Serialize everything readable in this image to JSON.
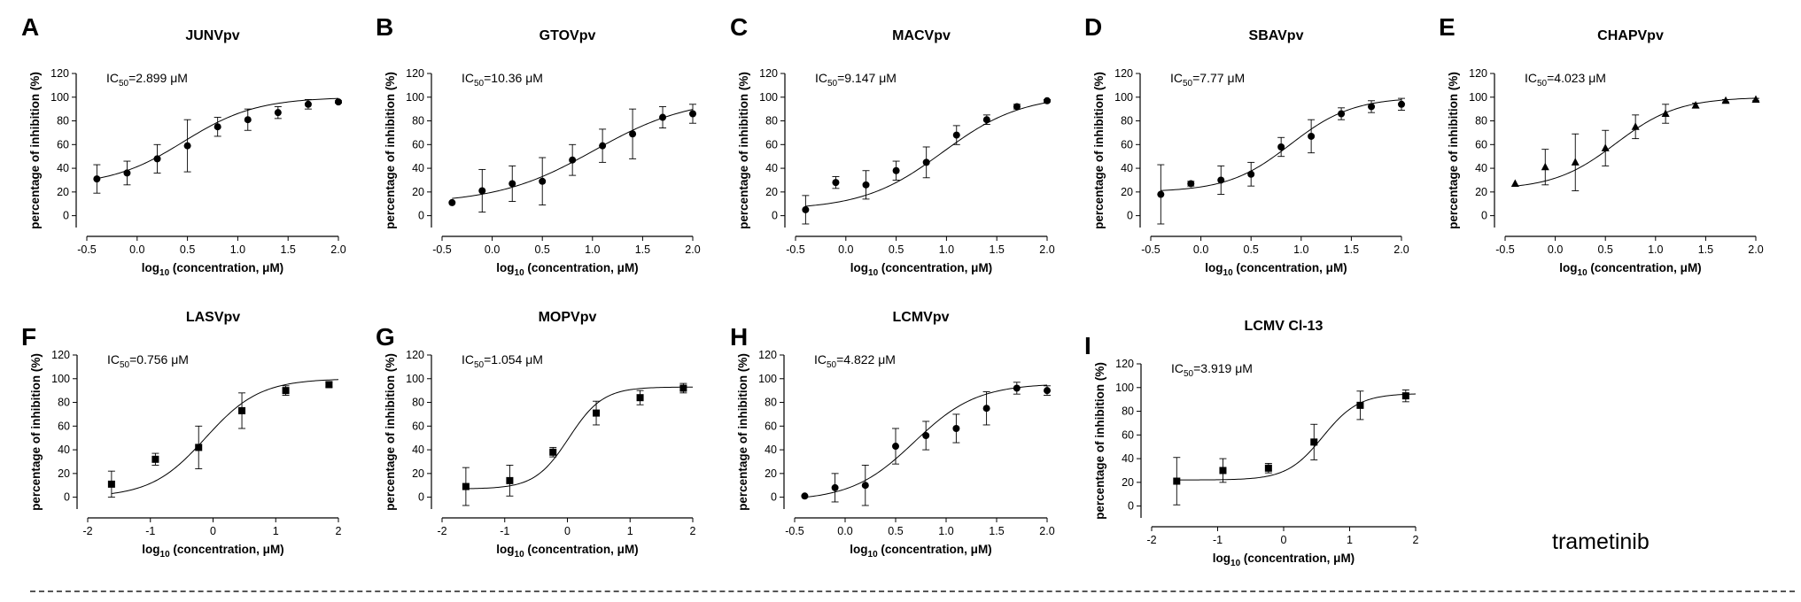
{
  "figure": {
    "drug_label": "trametinib",
    "y_label": "percentage of inhibition (%)",
    "x_label_prefix": "log",
    "x_label_sub": "10",
    "x_label_suffix": " (concentration, μM)",
    "ic50_prefix": "IC",
    "ic50_sub": "50",
    "line_color": "#000000"
  },
  "chart_data": [
    {
      "type": "scatter",
      "panel": "A",
      "title": "JUNVpv",
      "ic50": "=2.899 μM",
      "marker": "circle",
      "xlim": [
        -0.5,
        2.0
      ],
      "ylim": [
        -10,
        120
      ],
      "xticks": [
        -0.5,
        0.0,
        0.5,
        1.0,
        1.5,
        2.0
      ],
      "xtick_labels": [
        "-0.5",
        "0.0",
        "0.5",
        "1.0",
        "1.5",
        "2.0"
      ],
      "yticks": [
        0,
        20,
        40,
        60,
        80,
        100,
        120
      ],
      "ytick_labels": [
        "0",
        "20",
        "40",
        "60",
        "80",
        "100",
        "120"
      ],
      "x": [
        -0.4,
        -0.1,
        0.2,
        0.5,
        0.8,
        1.1,
        1.4,
        1.7,
        2.0
      ],
      "y": [
        31,
        36,
        48,
        59,
        75,
        81,
        87,
        94,
        96
      ],
      "err": [
        12,
        10,
        12,
        22,
        8,
        9,
        5,
        4,
        1
      ],
      "fit": {
        "bottom": 25,
        "top": 100,
        "logIC50": 0.462,
        "hill": 1.2
      }
    },
    {
      "type": "scatter",
      "panel": "B",
      "title": "GTOVpv",
      "ic50": "=10.36 μM",
      "marker": "circle",
      "xlim": [
        -0.5,
        2.0
      ],
      "ylim": [
        -10,
        120
      ],
      "xticks": [
        -0.5,
        0.0,
        0.5,
        1.0,
        1.5,
        2.0
      ],
      "xtick_labels": [
        "-0.5",
        "0.0",
        "0.5",
        "1.0",
        "1.5",
        "2.0"
      ],
      "yticks": [
        0,
        20,
        40,
        60,
        80,
        100,
        120
      ],
      "ytick_labels": [
        "0",
        "20",
        "40",
        "60",
        "80",
        "100",
        "120"
      ],
      "x": [
        -0.4,
        -0.1,
        0.2,
        0.5,
        0.8,
        1.1,
        1.4,
        1.7,
        2.0
      ],
      "y": [
        11,
        21,
        27,
        29,
        47,
        59,
        69,
        83,
        86
      ],
      "err": [
        0,
        18,
        15,
        20,
        13,
        14,
        21,
        9,
        8
      ],
      "fit": {
        "bottom": 10,
        "top": 100,
        "logIC50": 1.015,
        "hill": 0.9
      }
    },
    {
      "type": "scatter",
      "panel": "C",
      "title": "MACVpv",
      "ic50": "=9.147 μM",
      "marker": "circle",
      "xlim": [
        -0.5,
        2.0
      ],
      "ylim": [
        -10,
        120
      ],
      "xticks": [
        -0.5,
        0.0,
        0.5,
        1.0,
        1.5,
        2.0
      ],
      "xtick_labels": [
        "-0.5",
        "0.0",
        "0.5",
        "1.0",
        "1.5",
        "2.0"
      ],
      "yticks": [
        0,
        20,
        40,
        60,
        80,
        100,
        120
      ],
      "ytick_labels": [
        "0",
        "20",
        "40",
        "60",
        "80",
        "100",
        "120"
      ],
      "x": [
        -0.4,
        -0.1,
        0.2,
        0.5,
        0.8,
        1.1,
        1.4,
        1.7,
        2.0
      ],
      "y": [
        5,
        28,
        26,
        38,
        45,
        68,
        81,
        92,
        97
      ],
      "err": [
        12,
        5,
        12,
        8,
        13,
        8,
        4,
        2,
        1
      ],
      "fit": {
        "bottom": 5,
        "top": 102,
        "logIC50": 0.961,
        "hill": 1.1
      }
    },
    {
      "type": "scatter",
      "panel": "D",
      "title": "SBAVpv",
      "ic50": "=7.77 μM",
      "marker": "circle",
      "xlim": [
        -0.5,
        2.0
      ],
      "ylim": [
        -10,
        120
      ],
      "xticks": [
        -0.5,
        0.0,
        0.5,
        1.0,
        1.5,
        2.0
      ],
      "xtick_labels": [
        "-0.5",
        "0.0",
        "0.5",
        "1.0",
        "1.5",
        "2.0"
      ],
      "yticks": [
        0,
        20,
        40,
        60,
        80,
        100,
        120
      ],
      "ytick_labels": [
        "0",
        "20",
        "40",
        "60",
        "80",
        "100",
        "120"
      ],
      "x": [
        -0.4,
        -0.1,
        0.2,
        0.5,
        0.8,
        1.1,
        1.4,
        1.7,
        2.0
      ],
      "y": [
        18,
        27,
        30,
        35,
        58,
        67,
        86,
        92,
        94
      ],
      "err": [
        25,
        2,
        12,
        10,
        8,
        14,
        5,
        5,
        5
      ],
      "fit": {
        "bottom": 20,
        "top": 100,
        "logIC50": 0.89,
        "hill": 1.4
      }
    },
    {
      "type": "scatter",
      "panel": "E",
      "title": "CHAPVpv",
      "ic50": "=4.023 μM",
      "marker": "triangle",
      "xlim": [
        -0.5,
        2.0
      ],
      "ylim": [
        -10,
        120
      ],
      "xticks": [
        -0.5,
        0.0,
        0.5,
        1.0,
        1.5,
        2.0
      ],
      "xtick_labels": [
        "-0.5",
        "0.0",
        "0.5",
        "1.0",
        "1.5",
        "2.0"
      ],
      "yticks": [
        0,
        20,
        40,
        60,
        80,
        100,
        120
      ],
      "ytick_labels": [
        "0",
        "20",
        "40",
        "60",
        "80",
        "100",
        "120"
      ],
      "x": [
        -0.4,
        -0.1,
        0.2,
        0.5,
        0.8,
        1.1,
        1.4,
        1.7,
        2.0
      ],
      "y": [
        27,
        41,
        45,
        57,
        75,
        86,
        93,
        97,
        98
      ],
      "err": [
        0,
        15,
        24,
        15,
        10,
        8,
        2,
        1,
        1
      ],
      "fit": {
        "bottom": 22,
        "top": 100,
        "logIC50": 0.605,
        "hill": 1.4
      }
    },
    {
      "type": "scatter",
      "panel": "F",
      "title": "LASVpv",
      "ic50": "=0.756 μM",
      "marker": "square",
      "xlim": [
        -2,
        2
      ],
      "ylim": [
        -10,
        120
      ],
      "xticks": [
        -2,
        -1,
        0,
        1,
        2
      ],
      "xtick_labels": [
        "-2",
        "-1",
        "0",
        "1",
        "2"
      ],
      "yticks": [
        0,
        20,
        40,
        60,
        80,
        100,
        120
      ],
      "ytick_labels": [
        "0",
        "20",
        "40",
        "60",
        "80",
        "100",
        "120"
      ],
      "x": [
        -1.62,
        -0.92,
        -0.23,
        0.46,
        1.16,
        1.85
      ],
      "y": [
        11,
        32,
        42,
        73,
        90,
        95
      ],
      "err": [
        11,
        5,
        18,
        15,
        4,
        2
      ],
      "fit": {
        "bottom": 0,
        "top": 100,
        "logIC50": -0.121,
        "hill": 1.0
      }
    },
    {
      "type": "scatter",
      "panel": "G",
      "title": "MOPVpv",
      "ic50": "=1.054 μM",
      "marker": "square",
      "xlim": [
        -2,
        2
      ],
      "ylim": [
        -10,
        120
      ],
      "xticks": [
        -2,
        -1,
        0,
        1,
        2
      ],
      "xtick_labels": [
        "-2",
        "-1",
        "0",
        "1",
        "2"
      ],
      "yticks": [
        0,
        20,
        40,
        60,
        80,
        100,
        120
      ],
      "ytick_labels": [
        "0",
        "20",
        "40",
        "60",
        "80",
        "100",
        "120"
      ],
      "x": [
        -1.62,
        -0.92,
        -0.23,
        0.46,
        1.16,
        1.85
      ],
      "y": [
        9,
        14,
        38,
        71,
        84,
        92
      ],
      "err": [
        16,
        13,
        4,
        10,
        6,
        4
      ],
      "fit": {
        "bottom": 7,
        "top": 93,
        "logIC50": 0.023,
        "hill": 1.6
      }
    },
    {
      "type": "scatter",
      "panel": "H",
      "title": "LCMVpv",
      "ic50": "=4.822 μM",
      "marker": "circle",
      "xlim": [
        -0.5,
        2.0
      ],
      "ylim": [
        -10,
        120
      ],
      "xticks": [
        -0.5,
        0.0,
        0.5,
        1.0,
        1.5,
        2.0
      ],
      "xtick_labels": [
        "-0.5",
        "0.0",
        "0.5",
        "1.0",
        "1.5",
        "2.0"
      ],
      "yticks": [
        0,
        20,
        40,
        60,
        80,
        100,
        120
      ],
      "ytick_labels": [
        "0",
        "20",
        "40",
        "60",
        "80",
        "100",
        "120"
      ],
      "x": [
        -0.4,
        -0.1,
        0.2,
        0.5,
        0.8,
        1.1,
        1.4,
        1.7,
        2.0
      ],
      "y": [
        1,
        8,
        10,
        43,
        52,
        58,
        75,
        92,
        90
      ],
      "err": [
        0,
        12,
        17,
        15,
        12,
        12,
        14,
        5,
        4
      ],
      "fit": {
        "bottom": -3,
        "top": 96,
        "logIC50": 0.683,
        "hill": 1.4
      }
    },
    {
      "type": "scatter",
      "panel": "I",
      "title": "LCMV Cl-13",
      "ic50": "=3.919 μM",
      "marker": "square",
      "xlim": [
        -2,
        2
      ],
      "ylim": [
        -10,
        120
      ],
      "xticks": [
        -2,
        -1,
        0,
        1,
        2
      ],
      "xtick_labels": [
        "-2",
        "-1",
        "0",
        "1",
        "2"
      ],
      "yticks": [
        0,
        20,
        40,
        60,
        80,
        100,
        120
      ],
      "ytick_labels": [
        "0",
        "20",
        "40",
        "60",
        "80",
        "100",
        "120"
      ],
      "x": [
        -1.62,
        -0.92,
        -0.23,
        0.46,
        1.16,
        1.85
      ],
      "y": [
        21,
        30,
        32,
        54,
        85,
        93
      ],
      "err": [
        20,
        10,
        4,
        15,
        12,
        5
      ],
      "fit": {
        "bottom": 22,
        "top": 95,
        "logIC50": 0.593,
        "hill": 1.6
      }
    }
  ]
}
